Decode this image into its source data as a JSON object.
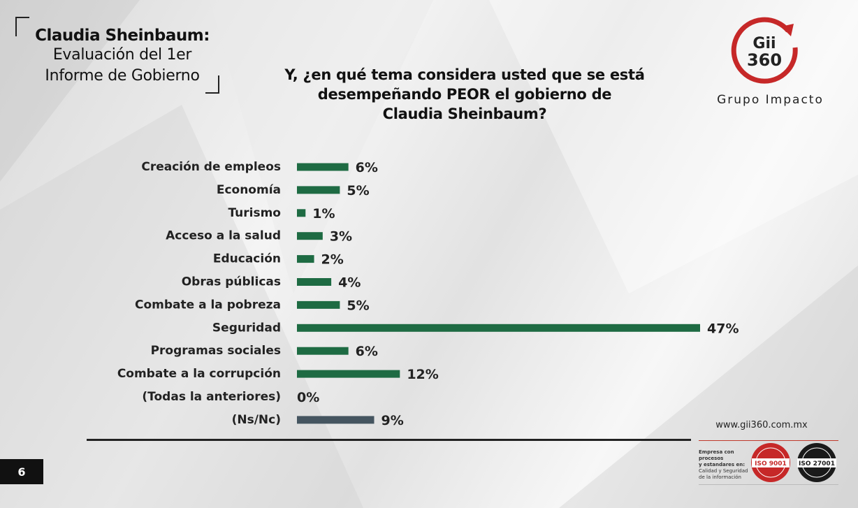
{
  "header": {
    "title": "Claudia Sheinbaum:",
    "subtitle_line1": "Evaluación del 1er",
    "subtitle_line2": "Informe de Gobierno"
  },
  "question": {
    "line1": "Y, ¿en qué tema considera usted que se está",
    "line2": "desempeñando PEOR el gobierno de",
    "line3": "Claudia Sheinbaum?"
  },
  "brand": {
    "logo_text_top": "Gii",
    "logo_text_bottom": "360",
    "name": "Grupo Impacto",
    "website": "www.gii360.com.mx",
    "accent_color": "#c62828"
  },
  "certification": {
    "line1": "Empresa con procesos",
    "line2": "y estandares en:",
    "line3": "Calidad y Seguridad",
    "line4": "de la información",
    "badge1": "ISO 9001",
    "badge2": "ISO 27001"
  },
  "page_number": "6",
  "chart_data": {
    "type": "bar",
    "orientation": "horizontal",
    "title": "",
    "xlabel": "",
    "ylabel": "",
    "xlim": [
      0,
      47
    ],
    "grid": false,
    "legend": "none",
    "bar_color": "#1e6b43",
    "ns_bar_color": "#455560",
    "categories": [
      "Creación de empleos",
      "Economía",
      "Turismo",
      "Acceso a la salud",
      "Educación",
      "Obras públicas",
      "Combate a la pobreza",
      "Seguridad",
      "Programas sociales",
      "Combate a la corrupción",
      "(Todas la anteriores)",
      "(Ns/Nc)"
    ],
    "values": [
      6,
      5,
      1,
      3,
      2,
      4,
      5,
      47,
      6,
      12,
      0,
      9
    ],
    "value_labels": [
      "6%",
      "5%",
      "1%",
      "3%",
      "2%",
      "4%",
      "5%",
      "47%",
      "6%",
      "12%",
      "0%",
      "9%"
    ]
  }
}
